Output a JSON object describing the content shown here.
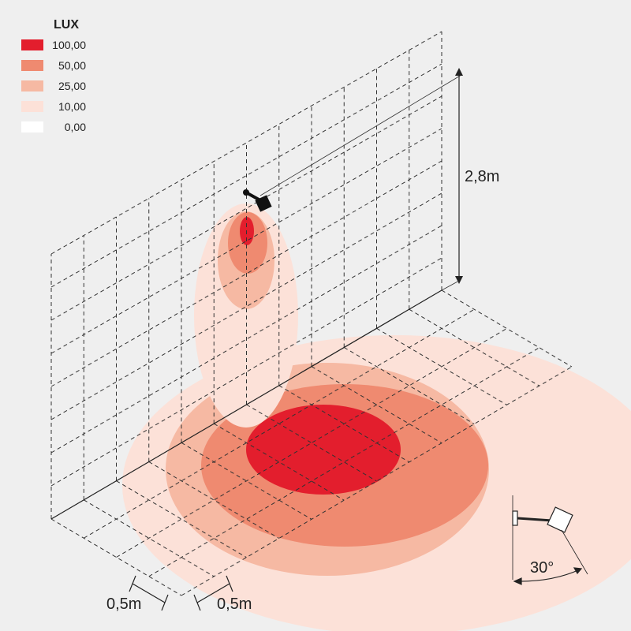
{
  "legend": {
    "title": "LUX",
    "items": [
      {
        "label": "100,00",
        "color": "#e31e2d"
      },
      {
        "label": "50,00",
        "color": "#ef8a70"
      },
      {
        "label": "25,00",
        "color": "#f6b9a3"
      },
      {
        "label": "10,00",
        "color": "#fce1d8"
      },
      {
        "label": "0,00",
        "color": "#ffffff"
      }
    ]
  },
  "dimensions": {
    "height": "2,8m",
    "grid_x": "0,5m",
    "grid_y": "0,5m",
    "angle": "30°"
  }
}
